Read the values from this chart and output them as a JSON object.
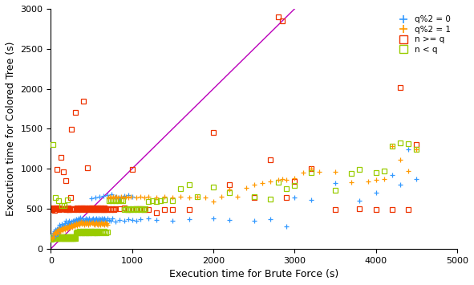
{
  "xlabel": "Execution time for Brute Force (s)",
  "ylabel": "Execution time for Colored Tree (s)",
  "xlim": [
    0,
    5000
  ],
  "ylim": [
    0,
    3000
  ],
  "xticks": [
    0,
    1000,
    2000,
    3000,
    4000,
    5000
  ],
  "yticks": [
    0,
    500,
    1000,
    1500,
    2000,
    2500,
    3000
  ],
  "diagonal_color": "#bb00bb",
  "legend_labels": [
    "q%2 = 0",
    "q%2 = 1",
    "n >= q",
    "n < q"
  ],
  "color_q0": "#3399ff",
  "color_q1": "#ff9900",
  "color_ngeq": "#ee3300",
  "color_nltq": "#99cc00",
  "background_color": "#ffffff",
  "data_q0": [
    [
      20,
      150
    ],
    [
      30,
      180
    ],
    [
      40,
      200
    ],
    [
      50,
      220
    ],
    [
      55,
      240
    ],
    [
      60,
      160
    ],
    [
      70,
      200
    ],
    [
      75,
      230
    ],
    [
      80,
      250
    ],
    [
      85,
      190
    ],
    [
      90,
      210
    ],
    [
      95,
      260
    ],
    [
      100,
      230
    ],
    [
      110,
      300
    ],
    [
      115,
      270
    ],
    [
      120,
      250
    ],
    [
      130,
      310
    ],
    [
      140,
      280
    ],
    [
      150,
      260
    ],
    [
      160,
      300
    ],
    [
      170,
      320
    ],
    [
      180,
      350
    ],
    [
      190,
      280
    ],
    [
      200,
      300
    ],
    [
      210,
      330
    ],
    [
      220,
      350
    ],
    [
      230,
      300
    ],
    [
      240,
      320
    ],
    [
      250,
      340
    ],
    [
      260,
      280
    ],
    [
      270,
      350
    ],
    [
      280,
      320
    ],
    [
      290,
      360
    ],
    [
      300,
      340
    ],
    [
      310,
      370
    ],
    [
      320,
      330
    ],
    [
      330,
      360
    ],
    [
      340,
      380
    ],
    [
      350,
      350
    ],
    [
      360,
      390
    ],
    [
      370,
      360
    ],
    [
      380,
      340
    ],
    [
      390,
      380
    ],
    [
      400,
      350
    ],
    [
      410,
      340
    ],
    [
      420,
      360
    ],
    [
      430,
      380
    ],
    [
      440,
      350
    ],
    [
      450,
      370
    ],
    [
      460,
      350
    ],
    [
      470,
      380
    ],
    [
      480,
      340
    ],
    [
      490,
      360
    ],
    [
      500,
      350
    ],
    [
      510,
      370
    ],
    [
      520,
      380
    ],
    [
      530,
      360
    ],
    [
      540,
      350
    ],
    [
      550,
      370
    ],
    [
      560,
      380
    ],
    [
      570,
      360
    ],
    [
      580,
      340
    ],
    [
      590,
      380
    ],
    [
      600,
      350
    ],
    [
      610,
      370
    ],
    [
      620,
      360
    ],
    [
      630,
      380
    ],
    [
      640,
      350
    ],
    [
      650,
      370
    ],
    [
      660,
      380
    ],
    [
      670,
      360
    ],
    [
      680,
      350
    ],
    [
      700,
      380
    ],
    [
      720,
      360
    ],
    [
      740,
      350
    ],
    [
      760,
      380
    ],
    [
      800,
      340
    ],
    [
      850,
      360
    ],
    [
      900,
      350
    ],
    [
      950,
      370
    ],
    [
      1000,
      360
    ],
    [
      1050,
      350
    ],
    [
      1100,
      370
    ],
    [
      1200,
      380
    ],
    [
      1300,
      360
    ],
    [
      1500,
      350
    ],
    [
      1700,
      370
    ],
    [
      2000,
      380
    ],
    [
      2200,
      360
    ],
    [
      2500,
      350
    ],
    [
      2700,
      370
    ],
    [
      2900,
      280
    ],
    [
      3000,
      640
    ],
    [
      3200,
      610
    ],
    [
      3500,
      820
    ],
    [
      3800,
      600
    ],
    [
      4000,
      700
    ],
    [
      4200,
      920
    ],
    [
      4300,
      800
    ],
    [
      4400,
      1240
    ],
    [
      4500,
      870
    ],
    [
      500,
      630
    ],
    [
      550,
      640
    ],
    [
      600,
      650
    ],
    [
      650,
      660
    ],
    [
      700,
      670
    ],
    [
      750,
      680
    ],
    [
      800,
      650
    ],
    [
      850,
      640
    ],
    [
      900,
      660
    ],
    [
      950,
      670
    ],
    [
      1000,
      650
    ]
  ],
  "data_q1": [
    [
      15,
      130
    ],
    [
      25,
      150
    ],
    [
      35,
      180
    ],
    [
      45,
      200
    ],
    [
      55,
      210
    ],
    [
      65,
      190
    ],
    [
      75,
      220
    ],
    [
      85,
      240
    ],
    [
      95,
      200
    ],
    [
      105,
      250
    ],
    [
      115,
      220
    ],
    [
      125,
      240
    ],
    [
      135,
      260
    ],
    [
      145,
      230
    ],
    [
      155,
      250
    ],
    [
      165,
      270
    ],
    [
      175,
      240
    ],
    [
      185,
      260
    ],
    [
      195,
      280
    ],
    [
      205,
      250
    ],
    [
      215,
      270
    ],
    [
      225,
      290
    ],
    [
      235,
      260
    ],
    [
      245,
      280
    ],
    [
      255,
      300
    ],
    [
      265,
      270
    ],
    [
      275,
      290
    ],
    [
      285,
      310
    ],
    [
      295,
      280
    ],
    [
      305,
      300
    ],
    [
      315,
      320
    ],
    [
      325,
      290
    ],
    [
      335,
      310
    ],
    [
      345,
      330
    ],
    [
      355,
      300
    ],
    [
      365,
      320
    ],
    [
      375,
      340
    ],
    [
      385,
      310
    ],
    [
      395,
      330
    ],
    [
      405,
      320
    ],
    [
      415,
      300
    ],
    [
      425,
      330
    ],
    [
      435,
      310
    ],
    [
      445,
      330
    ],
    [
      455,
      320
    ],
    [
      465,
      300
    ],
    [
      475,
      330
    ],
    [
      485,
      310
    ],
    [
      495,
      330
    ],
    [
      505,
      320
    ],
    [
      515,
      330
    ],
    [
      525,
      310
    ],
    [
      535,
      300
    ],
    [
      545,
      320
    ],
    [
      555,
      330
    ],
    [
      565,
      310
    ],
    [
      575,
      300
    ],
    [
      585,
      330
    ],
    [
      595,
      310
    ],
    [
      605,
      300
    ],
    [
      615,
      330
    ],
    [
      625,
      310
    ],
    [
      635,
      320
    ],
    [
      645,
      310
    ],
    [
      655,
      300
    ],
    [
      665,
      330
    ],
    [
      675,
      310
    ],
    [
      685,
      320
    ],
    [
      695,
      300
    ],
    [
      710,
      640
    ],
    [
      730,
      650
    ],
    [
      750,
      640
    ],
    [
      770,
      650
    ],
    [
      790,
      640
    ],
    [
      810,
      650
    ],
    [
      830,
      640
    ],
    [
      860,
      650
    ],
    [
      890,
      640
    ],
    [
      920,
      650
    ],
    [
      950,
      640
    ],
    [
      980,
      650
    ],
    [
      1050,
      640
    ],
    [
      1100,
      650
    ],
    [
      1150,
      640
    ],
    [
      1200,
      650
    ],
    [
      1300,
      640
    ],
    [
      1400,
      650
    ],
    [
      1500,
      640
    ],
    [
      1600,
      650
    ],
    [
      1700,
      640
    ],
    [
      1800,
      650
    ],
    [
      1900,
      640
    ],
    [
      2000,
      590
    ],
    [
      2100,
      650
    ],
    [
      2200,
      740
    ],
    [
      2300,
      650
    ],
    [
      2400,
      760
    ],
    [
      2500,
      800
    ],
    [
      2600,
      820
    ],
    [
      2700,
      840
    ],
    [
      2800,
      860
    ],
    [
      2850,
      870
    ],
    [
      2900,
      860
    ],
    [
      3000,
      880
    ],
    [
      3100,
      950
    ],
    [
      3200,
      1000
    ],
    [
      3300,
      960
    ],
    [
      3500,
      960
    ],
    [
      3700,
      830
    ],
    [
      3900,
      840
    ],
    [
      4000,
      860
    ],
    [
      4100,
      870
    ],
    [
      4200,
      1280
    ],
    [
      4300,
      1110
    ],
    [
      4400,
      970
    ],
    [
      4500,
      1240
    ]
  ],
  "data_ngeq": [
    [
      20,
      490
    ],
    [
      30,
      510
    ],
    [
      40,
      500
    ],
    [
      50,
      480
    ],
    [
      60,
      500
    ],
    [
      70,
      510
    ],
    [
      80,
      990
    ],
    [
      90,
      500
    ],
    [
      100,
      510
    ],
    [
      110,
      490
    ],
    [
      120,
      1140
    ],
    [
      130,
      500
    ],
    [
      140,
      500
    ],
    [
      150,
      960
    ],
    [
      160,
      500
    ],
    [
      170,
      500
    ],
    [
      180,
      490
    ],
    [
      190,
      500
    ],
    [
      200,
      500
    ],
    [
      210,
      510
    ],
    [
      220,
      490
    ],
    [
      230,
      500
    ],
    [
      240,
      640
    ],
    [
      250,
      1490
    ],
    [
      260,
      500
    ],
    [
      270,
      500
    ],
    [
      280,
      490
    ],
    [
      290,
      500
    ],
    [
      300,
      1700
    ],
    [
      310,
      500
    ],
    [
      320,
      510
    ],
    [
      330,
      490
    ],
    [
      340,
      500
    ],
    [
      350,
      500
    ],
    [
      360,
      510
    ],
    [
      370,
      490
    ],
    [
      380,
      500
    ],
    [
      390,
      510
    ],
    [
      400,
      1840
    ],
    [
      410,
      500
    ],
    [
      420,
      510
    ],
    [
      430,
      490
    ],
    [
      440,
      500
    ],
    [
      450,
      1010
    ],
    [
      460,
      500
    ],
    [
      470,
      510
    ],
    [
      480,
      490
    ],
    [
      490,
      500
    ],
    [
      500,
      510
    ],
    [
      510,
      490
    ],
    [
      520,
      500
    ],
    [
      530,
      510
    ],
    [
      540,
      490
    ],
    [
      550,
      500
    ],
    [
      560,
      510
    ],
    [
      570,
      490
    ],
    [
      580,
      500
    ],
    [
      590,
      510
    ],
    [
      600,
      490
    ],
    [
      610,
      500
    ],
    [
      620,
      510
    ],
    [
      630,
      490
    ],
    [
      640,
      500
    ],
    [
      650,
      490
    ],
    [
      660,
      510
    ],
    [
      670,
      490
    ],
    [
      680,
      500
    ],
    [
      700,
      490
    ],
    [
      720,
      500
    ],
    [
      740,
      490
    ],
    [
      760,
      500
    ],
    [
      780,
      490
    ],
    [
      800,
      500
    ],
    [
      850,
      500
    ],
    [
      900,
      510
    ],
    [
      950,
      490
    ],
    [
      1000,
      990
    ],
    [
      1050,
      500
    ],
    [
      1100,
      500
    ],
    [
      1150,
      490
    ],
    [
      1200,
      490
    ],
    [
      1300,
      450
    ],
    [
      1400,
      490
    ],
    [
      1500,
      490
    ],
    [
      1700,
      490
    ],
    [
      2000,
      1450
    ],
    [
      2200,
      800
    ],
    [
      2500,
      640
    ],
    [
      2700,
      1110
    ],
    [
      2800,
      2900
    ],
    [
      2850,
      2850
    ],
    [
      2900,
      640
    ],
    [
      3000,
      840
    ],
    [
      3200,
      1000
    ],
    [
      3500,
      490
    ],
    [
      3800,
      500
    ],
    [
      4000,
      490
    ],
    [
      4200,
      490
    ],
    [
      4300,
      2020
    ],
    [
      4400,
      490
    ],
    [
      4500,
      1300
    ],
    [
      180,
      850
    ],
    [
      220,
      490
    ]
  ],
  "data_nltq": [
    [
      10,
      120
    ],
    [
      15,
      130
    ],
    [
      20,
      140
    ],
    [
      25,
      150
    ],
    [
      30,
      130
    ],
    [
      35,
      140
    ],
    [
      40,
      150
    ],
    [
      45,
      130
    ],
    [
      50,
      140
    ],
    [
      55,
      150
    ],
    [
      60,
      130
    ],
    [
      65,
      140
    ],
    [
      70,
      150
    ],
    [
      75,
      130
    ],
    [
      80,
      140
    ],
    [
      85,
      150
    ],
    [
      90,
      130
    ],
    [
      95,
      140
    ],
    [
      100,
      150
    ],
    [
      105,
      130
    ],
    [
      110,
      140
    ],
    [
      115,
      150
    ],
    [
      120,
      130
    ],
    [
      125,
      140
    ],
    [
      130,
      150
    ],
    [
      135,
      130
    ],
    [
      140,
      140
    ],
    [
      145,
      150
    ],
    [
      150,
      130
    ],
    [
      155,
      140
    ],
    [
      160,
      150
    ],
    [
      165,
      130
    ],
    [
      170,
      140
    ],
    [
      175,
      150
    ],
    [
      180,
      130
    ],
    [
      185,
      140
    ],
    [
      190,
      150
    ],
    [
      195,
      130
    ],
    [
      200,
      140
    ],
    [
      205,
      150
    ],
    [
      210,
      130
    ],
    [
      215,
      140
    ],
    [
      220,
      150
    ],
    [
      225,
      130
    ],
    [
      230,
      140
    ],
    [
      235,
      150
    ],
    [
      240,
      130
    ],
    [
      245,
      140
    ],
    [
      250,
      150
    ],
    [
      255,
      130
    ],
    [
      260,
      140
    ],
    [
      265,
      150
    ],
    [
      270,
      130
    ],
    [
      275,
      140
    ],
    [
      280,
      150
    ],
    [
      285,
      130
    ],
    [
      290,
      140
    ],
    [
      295,
      150
    ],
    [
      300,
      130
    ],
    [
      310,
      200
    ],
    [
      320,
      210
    ],
    [
      330,
      200
    ],
    [
      340,
      210
    ],
    [
      350,
      220
    ],
    [
      360,
      200
    ],
    [
      370,
      210
    ],
    [
      380,
      200
    ],
    [
      390,
      220
    ],
    [
      400,
      210
    ],
    [
      410,
      200
    ],
    [
      420,
      220
    ],
    [
      430,
      200
    ],
    [
      440,
      210
    ],
    [
      450,
      220
    ],
    [
      460,
      200
    ],
    [
      470,
      210
    ],
    [
      480,
      200
    ],
    [
      490,
      220
    ],
    [
      500,
      210
    ],
    [
      510,
      220
    ],
    [
      520,
      200
    ],
    [
      530,
      210
    ],
    [
      540,
      220
    ],
    [
      550,
      200
    ],
    [
      560,
      210
    ],
    [
      570,
      200
    ],
    [
      580,
      220
    ],
    [
      590,
      210
    ],
    [
      600,
      220
    ],
    [
      620,
      200
    ],
    [
      640,
      210
    ],
    [
      660,
      220
    ],
    [
      680,
      200
    ],
    [
      700,
      210
    ],
    [
      720,
      600
    ],
    [
      740,
      610
    ],
    [
      760,
      600
    ],
    [
      780,
      610
    ],
    [
      800,
      600
    ],
    [
      820,
      610
    ],
    [
      840,
      600
    ],
    [
      860,
      610
    ],
    [
      880,
      600
    ],
    [
      900,
      490
    ],
    [
      920,
      500
    ],
    [
      940,
      490
    ],
    [
      960,
      500
    ],
    [
      980,
      490
    ],
    [
      1000,
      500
    ],
    [
      1020,
      490
    ],
    [
      1040,
      500
    ],
    [
      1060,
      490
    ],
    [
      1080,
      500
    ],
    [
      1100,
      490
    ],
    [
      1120,
      500
    ],
    [
      1140,
      490
    ],
    [
      1160,
      500
    ],
    [
      1200,
      590
    ],
    [
      1250,
      600
    ],
    [
      1300,
      590
    ],
    [
      1350,
      600
    ],
    [
      1400,
      610
    ],
    [
      1500,
      600
    ],
    [
      1600,
      750
    ],
    [
      1700,
      800
    ],
    [
      1800,
      650
    ],
    [
      2000,
      770
    ],
    [
      2200,
      700
    ],
    [
      2500,
      650
    ],
    [
      2700,
      620
    ],
    [
      2800,
      830
    ],
    [
      2900,
      750
    ],
    [
      3000,
      790
    ],
    [
      3200,
      950
    ],
    [
      3500,
      730
    ],
    [
      3700,
      940
    ],
    [
      3800,
      990
    ],
    [
      4000,
      950
    ],
    [
      4100,
      970
    ],
    [
      4200,
      1280
    ],
    [
      4300,
      1320
    ],
    [
      4400,
      1310
    ],
    [
      4500,
      1240
    ],
    [
      30,
      1300
    ],
    [
      60,
      640
    ],
    [
      100,
      600
    ],
    [
      130,
      540
    ],
    [
      160,
      540
    ],
    [
      200,
      610
    ]
  ]
}
